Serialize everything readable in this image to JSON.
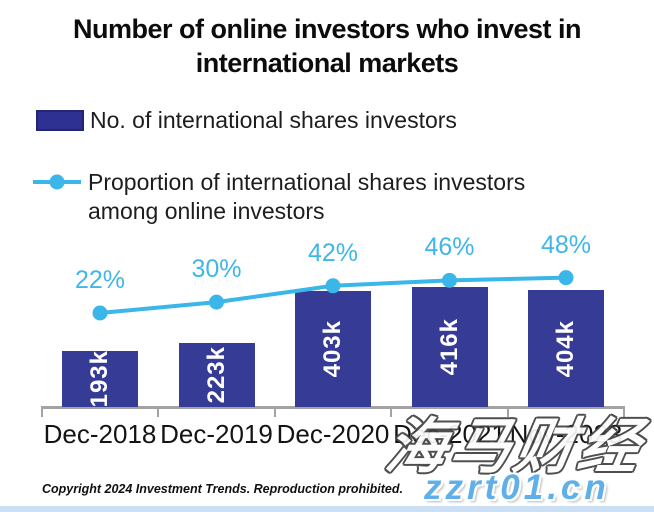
{
  "title": {
    "line1": "Number of online investors who invest in",
    "line2": "international markets"
  },
  "legend": {
    "bars_label": "No. of international shares investors",
    "line_label_line1": "Proportion of international shares investors",
    "line_label_line2": "among online investors"
  },
  "chart_data": {
    "type": "bar+line combo",
    "categories": [
      "Dec-2018",
      "Dec-2019",
      "Dec-2020",
      "Dec-2021",
      "Nov-2023"
    ],
    "series": [
      {
        "name": "No. of international shares investors",
        "type": "bar",
        "values": [
          193000,
          223000,
          403000,
          416000,
          404000
        ],
        "labels": [
          "193k",
          "223k",
          "403k",
          "416k",
          "404k"
        ]
      },
      {
        "name": "Proportion of international shares investors among online investors",
        "type": "line",
        "values": [
          22,
          30,
          42,
          46,
          48
        ],
        "labels": [
          "22%",
          "30%",
          "42%",
          "46%",
          "48%"
        ]
      }
    ],
    "legend_position": "top-left",
    "grid": false,
    "value_axis_labels_visible": false,
    "colors": {
      "bar": "#363b96",
      "legend_swatch": "#2e3192",
      "line": "#3bb6e8",
      "percent_text": "#41b6e8",
      "axis": "#a3a3a3",
      "x_label_text": "#141414"
    }
  },
  "footer": {
    "copyright": "Copyright 2024 Investment Trends. Reproduction prohibited."
  },
  "watermark": {
    "cn_text": "海马财经",
    "url_text": "zzrt01.cn",
    "url_color": "#5fb0e8"
  }
}
